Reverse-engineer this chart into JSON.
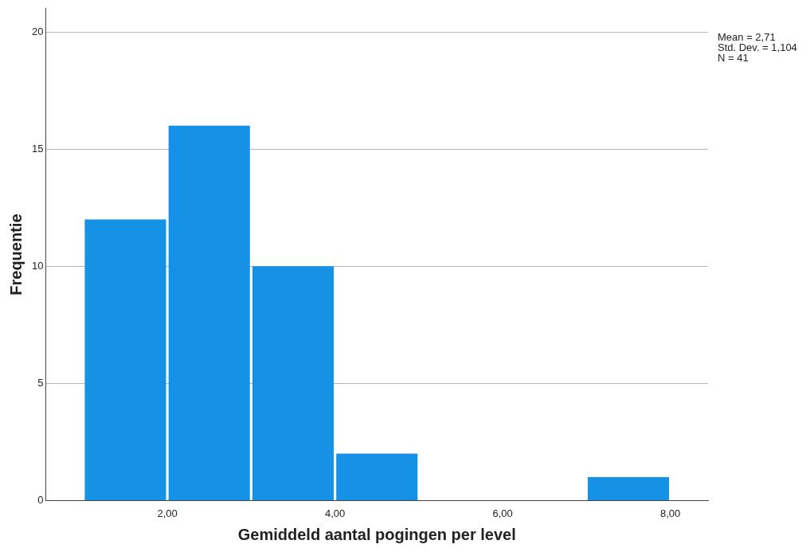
{
  "chart_data": {
    "type": "histogram",
    "xlabel": "Gemiddeld aantal pogingen per level",
    "ylabel": "Frequentie",
    "bins": [
      1,
      2,
      3,
      4,
      5,
      6,
      7,
      8
    ],
    "values": [
      12,
      16,
      10,
      2,
      0,
      0,
      1
    ],
    "color": "#1591e6",
    "xlim": [
      0.55,
      8.45
    ],
    "xticks": [
      {
        "value": 2,
        "label": "2,00"
      },
      {
        "value": 4,
        "label": "4,00"
      },
      {
        "value": 6,
        "label": "6,00"
      },
      {
        "value": 8,
        "label": "8,00"
      }
    ],
    "ylim": [
      0,
      21
    ],
    "yticks": [
      0,
      5,
      10,
      15,
      20
    ],
    "grid": "y",
    "legend": false,
    "annotations": [
      "Mean = 2,71",
      "Std. Dev. = 1,104",
      "N = 41"
    ]
  }
}
